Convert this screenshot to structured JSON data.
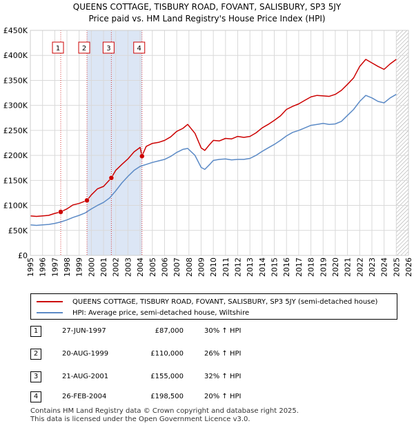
{
  "title": "QUEENS COTTAGE, TISBURY ROAD, FOVANT, SALISBURY, SP3 5JY",
  "subtitle": "Price paid vs. HM Land Registry's House Price Index (HPI)",
  "colors": {
    "property": "#cc0000",
    "hpi": "#5b8ac6",
    "shade": "#dce6f5",
    "grid": "#d9d9d9"
  },
  "chart_data": {
    "type": "line",
    "title": "QUEENS COTTAGE, TISBURY ROAD, FOVANT, SALISBURY, SP3 5JY",
    "subtitle": "Price paid vs. HM Land Registry's House Price Index (HPI)",
    "xlim": [
      1995,
      2026
    ],
    "ylim": [
      0,
      450000
    ],
    "y_ticks": [
      0,
      50000,
      100000,
      150000,
      200000,
      250000,
      300000,
      350000,
      400000,
      450000
    ],
    "y_tick_labels": [
      "£0",
      "£50K",
      "£100K",
      "£150K",
      "£200K",
      "£250K",
      "£300K",
      "£350K",
      "£400K",
      "£450K"
    ],
    "x_ticks": [
      1995,
      1996,
      1997,
      1998,
      1999,
      2000,
      2001,
      2002,
      2003,
      2004,
      2005,
      2006,
      2007,
      2008,
      2009,
      2010,
      2011,
      2012,
      2013,
      2014,
      2015,
      2016,
      2017,
      2018,
      2019,
      2020,
      2021,
      2022,
      2023,
      2024,
      2025,
      2026
    ],
    "series": [
      {
        "name": "QUEENS COTTAGE, TISBURY ROAD, FOVANT, SALISBURY, SP3 5JY (semi-detached house)",
        "x": [
          1995.0,
          1995.5,
          1996.0,
          1996.5,
          1997.0,
          1997.49,
          1998.0,
          1998.5,
          1999.0,
          1999.64,
          2000.0,
          2000.5,
          2001.0,
          2001.64,
          2002.0,
          2002.5,
          2003.0,
          2003.5,
          2004.0,
          2004.15,
          2004.5,
          2005.0,
          2005.5,
          2006.0,
          2006.5,
          2007.0,
          2007.5,
          2007.9,
          2008.5,
          2009.0,
          2009.3,
          2009.7,
          2010.0,
          2010.5,
          2011.0,
          2011.5,
          2012.0,
          2012.5,
          2013.0,
          2013.5,
          2014.0,
          2014.5,
          2015.0,
          2015.5,
          2016.0,
          2016.5,
          2017.0,
          2017.5,
          2018.0,
          2018.5,
          2019.0,
          2019.5,
          2020.0,
          2020.5,
          2021.0,
          2021.5,
          2022.0,
          2022.5,
          2023.0,
          2023.5,
          2024.0,
          2024.5,
          2025.0
        ],
        "y": [
          79000,
          78000,
          79000,
          80000,
          84000,
          87000,
          93000,
          101000,
          104000,
          110000,
          121000,
          133000,
          138000,
          155000,
          170000,
          182000,
          193000,
          207000,
          216000,
          198500,
          218000,
          224000,
          226000,
          230000,
          237000,
          248000,
          254000,
          262000,
          244000,
          215000,
          210000,
          222000,
          230000,
          229000,
          234000,
          233000,
          238000,
          236000,
          238000,
          245000,
          255000,
          262000,
          270000,
          279000,
          292000,
          298000,
          303000,
          310000,
          317000,
          320000,
          319000,
          318000,
          322000,
          330000,
          342000,
          355000,
          378000,
          392000,
          385000,
          378000,
          372000,
          383000,
          392000
        ]
      },
      {
        "name": "HPI: Average price, semi-detached house, Wiltshire",
        "x": [
          1995.0,
          1995.5,
          1996.0,
          1996.5,
          1997.0,
          1997.5,
          1998.0,
          1998.5,
          1999.0,
          1999.5,
          2000.0,
          2000.5,
          2001.0,
          2001.5,
          2002.0,
          2002.5,
          2003.0,
          2003.5,
          2004.0,
          2004.5,
          2005.0,
          2005.5,
          2006.0,
          2006.5,
          2007.0,
          2007.5,
          2007.9,
          2008.5,
          2009.0,
          2009.3,
          2009.7,
          2010.0,
          2010.5,
          2011.0,
          2011.5,
          2012.0,
          2012.5,
          2013.0,
          2013.5,
          2014.0,
          2014.5,
          2015.0,
          2015.5,
          2016.0,
          2016.5,
          2017.0,
          2017.5,
          2018.0,
          2018.5,
          2019.0,
          2019.5,
          2020.0,
          2020.5,
          2021.0,
          2021.5,
          2022.0,
          2022.5,
          2023.0,
          2023.5,
          2024.0,
          2024.5,
          2025.0
        ],
        "y": [
          61000,
          60000,
          61000,
          62000,
          64000,
          67000,
          71000,
          76000,
          80000,
          85000,
          93000,
          100000,
          106000,
          115000,
          129000,
          145000,
          158000,
          170000,
          178000,
          182000,
          186000,
          189000,
          192000,
          198000,
          206000,
          212000,
          214000,
          200000,
          176000,
          172000,
          182000,
          190000,
          192000,
          193000,
          191000,
          192000,
          192000,
          194000,
          200000,
          208000,
          215000,
          222000,
          230000,
          239000,
          246000,
          250000,
          255000,
          260000,
          262000,
          264000,
          262000,
          263000,
          268000,
          280000,
          292000,
          308000,
          320000,
          315000,
          308000,
          305000,
          315000,
          322000
        ]
      }
    ],
    "sale_markers": [
      {
        "label": "1",
        "x": 1997.49,
        "y": 87000
      },
      {
        "label": "2",
        "x": 1999.64,
        "y": 110000
      },
      {
        "label": "3",
        "x": 2001.64,
        "y": 155000
      },
      {
        "label": "4",
        "x": 2004.15,
        "y": 198500
      }
    ],
    "shaded_periods": [
      [
        1999.64,
        2001.64
      ],
      [
        2001.64,
        2004.15
      ]
    ],
    "hatched_period": [
      2025.0,
      2026.0
    ]
  },
  "legend": {
    "property": "QUEENS COTTAGE, TISBURY ROAD, FOVANT, SALISBURY, SP3 5JY (semi-detached house)",
    "hpi": "HPI: Average price, semi-detached house, Wiltshire"
  },
  "sales": [
    {
      "num": "1",
      "date": "27-JUN-1997",
      "price": "£87,000",
      "hpi": "30% ↑ HPI"
    },
    {
      "num": "2",
      "date": "20-AUG-1999",
      "price": "£110,000",
      "hpi": "26% ↑ HPI"
    },
    {
      "num": "3",
      "date": "21-AUG-2001",
      "price": "£155,000",
      "hpi": "32% ↑ HPI"
    },
    {
      "num": "4",
      "date": "26-FEB-2004",
      "price": "£198,500",
      "hpi": "20% ↑ HPI"
    }
  ],
  "footer": {
    "line1": "Contains HM Land Registry data © Crown copyright and database right 2025.",
    "line2": "This data is licensed under the Open Government Licence v3.0."
  }
}
